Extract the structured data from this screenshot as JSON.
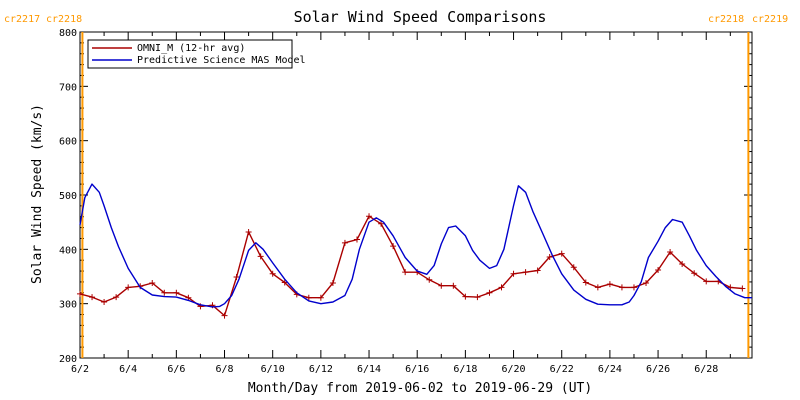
{
  "chart_data": {
    "type": "line",
    "title": "Solar Wind Speed Comparisons",
    "xlabel": "Month/Day from 2019-06-02 to 2019-06-29 (UT)",
    "ylabel": "Solar Wind Speed (km/s)",
    "xlim": [
      0,
      27.9
    ],
    "ylim": [
      200,
      800
    ],
    "x_ticks": [
      {
        "x": 0,
        "label": "6/2"
      },
      {
        "x": 2,
        "label": "6/4"
      },
      {
        "x": 4,
        "label": "6/6"
      },
      {
        "x": 6,
        "label": "6/8"
      },
      {
        "x": 8,
        "label": "6/10"
      },
      {
        "x": 10,
        "label": "6/12"
      },
      {
        "x": 12,
        "label": "6/14"
      },
      {
        "x": 14,
        "label": "6/16"
      },
      {
        "x": 16,
        "label": "6/18"
      },
      {
        "x": 18,
        "label": "6/20"
      },
      {
        "x": 20,
        "label": "6/22"
      },
      {
        "x": 22,
        "label": "6/24"
      },
      {
        "x": 24,
        "label": "6/26"
      },
      {
        "x": 26,
        "label": "6/28"
      }
    ],
    "y_ticks": [
      200,
      300,
      400,
      500,
      600,
      700,
      800
    ],
    "grid": false,
    "legend_position": "top-left",
    "carrington_markers": [
      {
        "x": 0.1,
        "label_left": "cr2217",
        "label_right": "cr2218"
      },
      {
        "x": 27.75,
        "label_left": "cr2218",
        "label_right": "cr2219"
      }
    ],
    "marker_color": "#ff9900",
    "series": [
      {
        "name": "OMNI_M (12-hr avg)",
        "color": "#aa0000",
        "style": "line+cross",
        "x": [
          0,
          0.5,
          1,
          1.5,
          2,
          2.5,
          3,
          3.5,
          4,
          4.5,
          5,
          5.5,
          6,
          6.5,
          7,
          7.5,
          8,
          8.5,
          9,
          9.5,
          10,
          10.5,
          11,
          11.5,
          12,
          12.5,
          13,
          13.5,
          14,
          14.5,
          15,
          15.5,
          16,
          16.5,
          17,
          17.5,
          18,
          18.5,
          19,
          19.5,
          20,
          20.5,
          21,
          21.5,
          22,
          22.5,
          23,
          23.5,
          24,
          24.5,
          25,
          25.5,
          26,
          26.5,
          27,
          27.5
        ],
        "values": [
          318,
          312,
          303,
          312,
          330,
          332,
          338,
          320,
          320,
          311,
          295,
          297,
          278,
          349,
          432,
          387,
          355,
          339,
          317,
          311,
          311,
          338,
          412,
          418,
          461,
          447,
          406,
          358,
          358,
          344,
          333,
          333,
          313,
          312,
          320,
          330,
          355,
          358,
          361,
          386,
          392,
          367,
          339,
          330,
          336,
          330,
          330,
          338,
          362,
          395,
          373,
          356,
          341,
          341,
          330,
          328
        ]
      },
      {
        "name": "Predictive Science MAS Model",
        "color": "#0000cc",
        "style": "line",
        "x": [
          0,
          0.2,
          0.5,
          0.8,
          1.0,
          1.3,
          1.6,
          2.0,
          2.5,
          3.0,
          3.5,
          4.0,
          4.5,
          5.0,
          5.5,
          5.8,
          6.0,
          6.3,
          6.6,
          7.0,
          7.3,
          7.6,
          8.0,
          8.5,
          9.0,
          9.5,
          10.0,
          10.5,
          11.0,
          11.3,
          11.6,
          12.0,
          12.3,
          12.6,
          13.0,
          13.5,
          14.0,
          14.4,
          14.7,
          15.0,
          15.3,
          15.6,
          16.0,
          16.3,
          16.6,
          17.0,
          17.3,
          17.6,
          18.0,
          18.2,
          18.5,
          18.8,
          19.2,
          19.6,
          20.0,
          20.5,
          21.0,
          21.5,
          22.0,
          22.5,
          22.8,
          23.0,
          23.3,
          23.6,
          24.0,
          24.3,
          24.6,
          25.0,
          25.3,
          25.6,
          26.0,
          26.4,
          26.8,
          27.2,
          27.6,
          27.9
        ],
        "values": [
          445,
          495,
          520,
          505,
          480,
          440,
          405,
          365,
          330,
          316,
          313,
          312,
          306,
          298,
          294,
          295,
          300,
          315,
          345,
          398,
          412,
          400,
          375,
          345,
          320,
          305,
          300,
          303,
          315,
          345,
          400,
          450,
          458,
          450,
          425,
          385,
          360,
          354,
          370,
          410,
          440,
          443,
          425,
          398,
          380,
          365,
          370,
          400,
          480,
          517,
          505,
          470,
          430,
          390,
          355,
          325,
          308,
          299,
          298,
          298,
          303,
          315,
          340,
          385,
          415,
          440,
          455,
          450,
          425,
          398,
          370,
          350,
          332,
          318,
          311,
          311
        ]
      }
    ]
  }
}
